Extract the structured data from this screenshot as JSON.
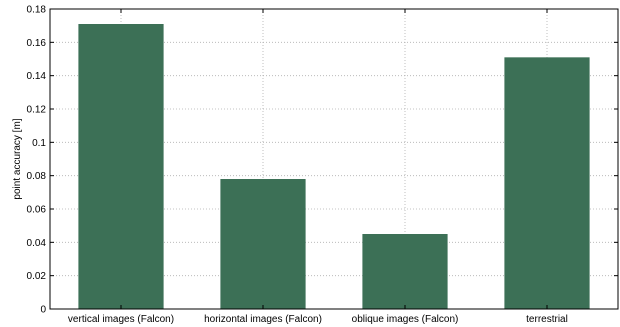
{
  "chart_data": {
    "type": "bar",
    "categories": [
      "vertical images (Falcon)",
      "horizontal images (Falcon)",
      "oblique images (Falcon)",
      "terrestrial"
    ],
    "values": [
      0.171,
      0.078,
      0.045,
      0.151
    ],
    "ylabel": "point accuracy [m]",
    "ylim": [
      0,
      0.18
    ],
    "yticks": [
      "0",
      "0.02",
      "0.04",
      "0.06",
      "0.08",
      "0.1",
      "0.12",
      "0.14",
      "0.16",
      "0.18"
    ],
    "grid": true,
    "bar_color": "#3c7056"
  }
}
